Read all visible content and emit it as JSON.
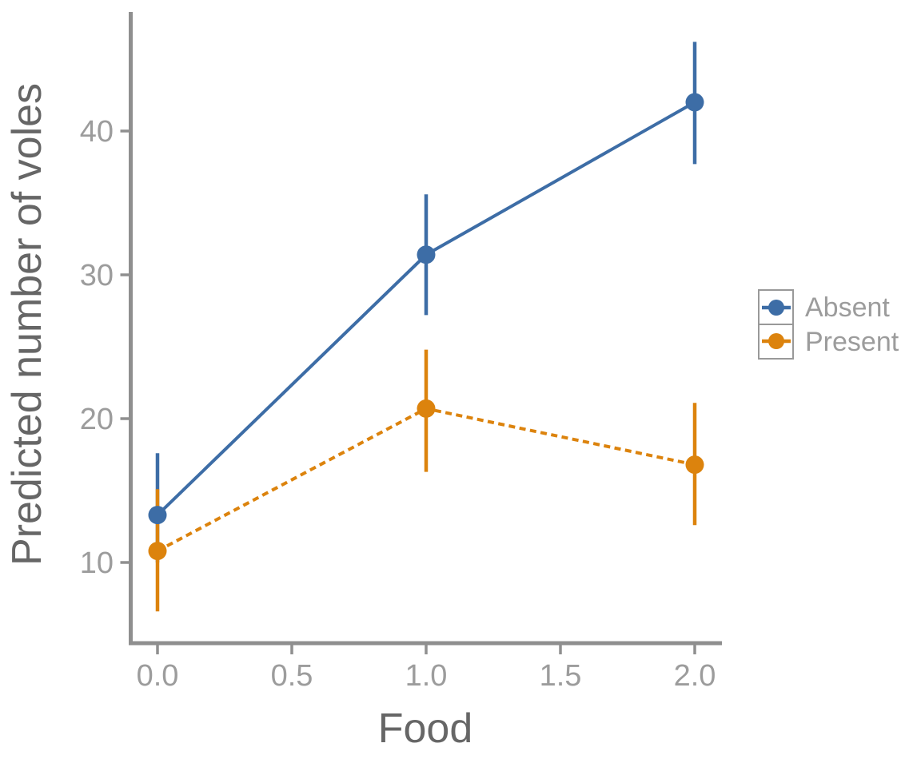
{
  "style": {
    "background": "#ffffff",
    "axis_color": "#8F8F8F",
    "tick_label_color": "#9C9C9C",
    "axis_title_color": "#666666",
    "legend_text_color": "#9C9C9C",
    "legend_border_color": "#999999"
  },
  "chart_data": {
    "type": "line",
    "title": "",
    "xlabel": "Food",
    "ylabel": "Predicted number of voles",
    "x_tick_labels": [
      "0.0",
      "0.5",
      "1.0",
      "1.5",
      "2.0"
    ],
    "x_tick_values": [
      0,
      0.5,
      1.0,
      1.5,
      2.0
    ],
    "y_ticks": [
      10,
      20,
      30,
      40
    ],
    "xlim": [
      -0.1,
      2.1
    ],
    "ylim": [
      4.4,
      48.3
    ],
    "grid": false,
    "legend_position": "right-middle",
    "series": [
      {
        "name": "Absent",
        "color": "#3D6DA6",
        "marker": "circle",
        "linestyle": "solid",
        "x": [
          0,
          1,
          2
        ],
        "y": [
          13.3,
          31.4,
          42.0
        ],
        "ci_low": [
          10.0,
          27.2,
          37.7
        ],
        "ci_high": [
          17.6,
          35.6,
          46.2
        ]
      },
      {
        "name": "Present",
        "color": "#DC830D",
        "marker": "circle",
        "linestyle": "dashed",
        "x": [
          0,
          1,
          2
        ],
        "y": [
          10.8,
          20.7,
          16.8
        ],
        "ci_low": [
          6.6,
          16.3,
          12.6
        ],
        "ci_high": [
          15.1,
          24.8,
          21.1
        ]
      }
    ]
  }
}
